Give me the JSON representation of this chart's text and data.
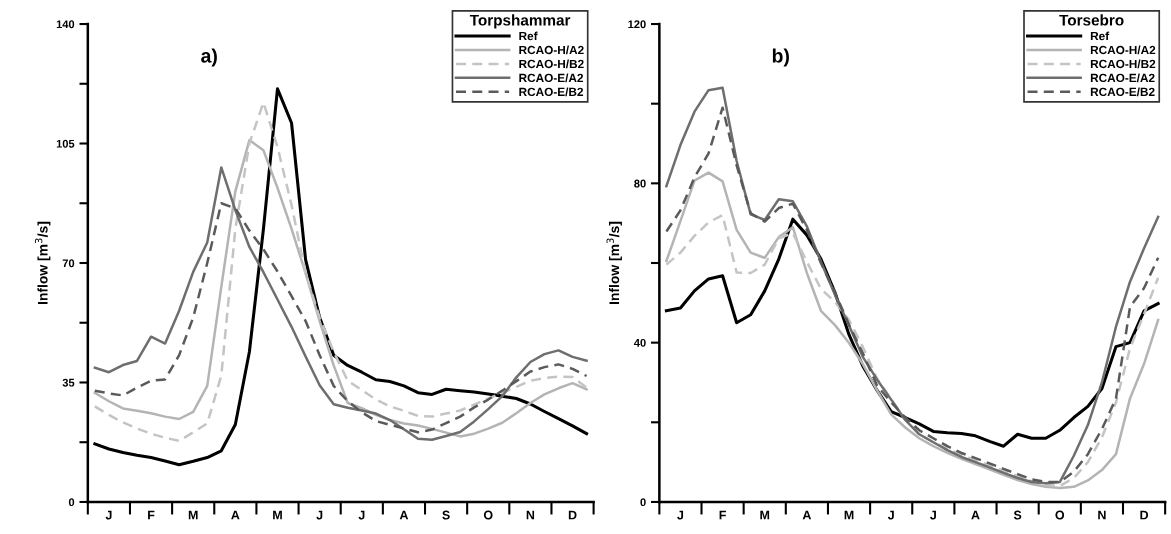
{
  "chart_data": [
    {
      "type": "line",
      "annotations": [
        "a)"
      ],
      "ylabel": "Inflow [m$^{3}$/s]",
      "legend_title": "Torpshammar",
      "legend": "top right",
      "grid": false,
      "marker": "none",
      "categories": [
        null,
        "J",
        null,
        null,
        "F",
        null,
        null,
        "M",
        null,
        null,
        "A",
        null,
        null,
        "M",
        null,
        null,
        "J",
        null,
        null,
        "J",
        null,
        null,
        "A",
        null,
        null,
        "S",
        null,
        null,
        "O",
        null,
        null,
        "N",
        null,
        null,
        "D",
        null
      ],
      "ylim": [
        0,
        140
      ],
      "yticks": [
        0,
        {
          "value": 17.5,
          "label": null
        },
        35,
        {
          "value": 52.5,
          "label": null
        },
        70,
        {
          "value": 87.5,
          "label": null
        },
        105,
        {
          "value": 122.5,
          "label": null
        },
        140
      ],
      "series": [
        {
          "name": "Ref",
          "color": "#000000",
          "line_style": "solid",
          "values": [
            17,
            15.5,
            14.5,
            13.7,
            13,
            12,
            10.9,
            11.9,
            13,
            15,
            22.7,
            44,
            80,
            121,
            111,
            71,
            54,
            43,
            40,
            38,
            35.8,
            35.3,
            34,
            32,
            31.5,
            33,
            32.6,
            32.2,
            31.6,
            31,
            30.3,
            28.7,
            26.5,
            24.4,
            22.3,
            20
          ]
        },
        {
          "name": "RCAO-H/A2",
          "color": "#b4b4b4",
          "line_style": "solid",
          "values": [
            32,
            29.5,
            27.4,
            26.7,
            26,
            25,
            24.3,
            26.4,
            34,
            63,
            91,
            106,
            103,
            92,
            80,
            67,
            53,
            40,
            29,
            27.5,
            25.5,
            24,
            23,
            22.4,
            21.4,
            20.3,
            19.2,
            20,
            21.5,
            23.2,
            26,
            29,
            31.5,
            33.3,
            34.8,
            33
          ]
        },
        {
          "name": "RCAO-H/B2",
          "color": "#c4c4c4",
          "line_style": "dashed",
          "values": [
            28,
            25.5,
            23.3,
            21.5,
            20,
            18.8,
            17.9,
            20.4,
            23,
            37,
            80,
            105,
            117,
            104,
            87,
            67,
            54,
            44,
            35.5,
            32.8,
            30,
            28,
            26.7,
            25.2,
            25,
            25.9,
            26.8,
            28.5,
            30.3,
            32,
            33.7,
            35.5,
            36.3,
            36.7,
            36.6,
            33.5
          ]
        },
        {
          "name": "RCAO-E/A2",
          "color": "#6e6e6e",
          "line_style": "solid",
          "values": [
            39.3,
            38,
            40.1,
            41.3,
            48.4,
            46.4,
            56,
            67.4,
            76,
            98,
            85.5,
            74.7,
            67.3,
            59.3,
            51.3,
            42.6,
            34.2,
            28.6,
            27.6,
            26.8,
            25.9,
            24,
            21.3,
            18.5,
            18.2,
            19.3,
            20.5,
            23.6,
            27.2,
            31,
            36.5,
            41,
            43.3,
            44.4,
            42.5,
            41.4
          ]
        },
        {
          "name": "RCAO-E/B2",
          "color": "#5a5a5a",
          "line_style": "dashed",
          "values": [
            32.6,
            31.8,
            31.2,
            33.5,
            35.5,
            35.9,
            43,
            54,
            70,
            87.5,
            86,
            79.5,
            74,
            67.5,
            60.3,
            53,
            43,
            34,
            29.5,
            26.3,
            23.7,
            22.6,
            21.5,
            20.4,
            21.2,
            23.1,
            25,
            27.7,
            30,
            32.6,
            35.4,
            38.2,
            39.5,
            40.3,
            39,
            36.9
          ]
        }
      ]
    },
    {
      "type": "line",
      "annotations": [
        "b)"
      ],
      "ylabel": "Inflow [m$^{3}$/s]",
      "legend_title": "Torsebro",
      "legend": "top right",
      "grid": false,
      "marker": "none",
      "categories": [
        null,
        "J",
        null,
        null,
        "F",
        null,
        null,
        "M",
        null,
        null,
        "A",
        null,
        null,
        "M",
        null,
        null,
        "J",
        null,
        null,
        "J",
        null,
        null,
        "A",
        null,
        null,
        "S",
        null,
        null,
        "O",
        null,
        null,
        "N",
        null,
        null,
        "D",
        null
      ],
      "ylim": [
        0,
        120
      ],
      "yticks": [
        0,
        {
          "value": 20,
          "label": null
        },
        40,
        {
          "value": 60,
          "label": null
        },
        80,
        {
          "value": 100,
          "label": null
        },
        120
      ],
      "series": [
        {
          "name": "Ref",
          "color": "#000000",
          "line_style": "solid",
          "values": [
            48,
            48.7,
            53,
            56,
            56.8,
            45,
            47,
            53,
            61,
            71,
            67,
            61,
            52.6,
            42,
            34,
            28,
            22.7,
            21.2,
            19.6,
            17.7,
            17.4,
            17.2,
            16.6,
            15.2,
            14,
            17,
            16,
            16,
            18,
            21.2,
            24,
            28.5,
            39,
            40,
            48,
            49.8
          ]
        },
        {
          "name": "RCAO-H/A2",
          "color": "#b4b4b4",
          "line_style": "solid",
          "values": [
            60.5,
            70.5,
            80.7,
            82.7,
            80.5,
            68.3,
            62.6,
            61.3,
            66.5,
            69,
            57.5,
            48,
            44.4,
            39.9,
            34.5,
            28,
            22,
            18.7,
            16,
            14,
            12.3,
            10.8,
            9.5,
            8.2,
            6.8,
            5.5,
            4.5,
            3.8,
            3.5,
            3.8,
            5.4,
            8,
            12,
            26,
            34.7,
            45.7
          ]
        },
        {
          "name": "RCAO-H/B2",
          "color": "#c4c4c4",
          "line_style": "dashed",
          "values": [
            59.6,
            62.6,
            66.8,
            70.2,
            72,
            57.6,
            57.5,
            59.6,
            66.2,
            67.5,
            60.3,
            53.5,
            50.2,
            45.7,
            38.8,
            30.9,
            25.8,
            20.7,
            17,
            15,
            13.3,
            11.8,
            10.5,
            9.2,
            7.8,
            6.5,
            5.2,
            4.3,
            4,
            6,
            10,
            16.2,
            25,
            38.6,
            47.2,
            56.3
          ]
        },
        {
          "name": "RCAO-E/A2",
          "color": "#6e6e6e",
          "line_style": "solid",
          "values": [
            79.3,
            89.6,
            98,
            103.4,
            104,
            85.6,
            72.2,
            70.8,
            76,
            75.5,
            69.2,
            60.3,
            52,
            44.3,
            36.3,
            30.7,
            25.7,
            20.6,
            17,
            15,
            13,
            11.3,
            10,
            8.7,
            7.3,
            6,
            5,
            4.7,
            5,
            11.6,
            19.3,
            30,
            44,
            55.3,
            63.7,
            71.6
          ]
        },
        {
          "name": "RCAO-E/B2",
          "color": "#5a5a5a",
          "line_style": "dashed",
          "values": [
            67.9,
            73.2,
            81.5,
            87.5,
            99,
            84.5,
            72.5,
            70.4,
            73.8,
            74.9,
            68.3,
            60,
            52.6,
            44.5,
            37.2,
            29.2,
            25,
            21.2,
            18,
            16,
            14,
            12.3,
            11,
            9.7,
            8.3,
            7,
            5.7,
            5,
            5,
            7.6,
            12,
            18.3,
            26,
            49,
            53.7,
            61.3
          ]
        }
      ]
    }
  ]
}
